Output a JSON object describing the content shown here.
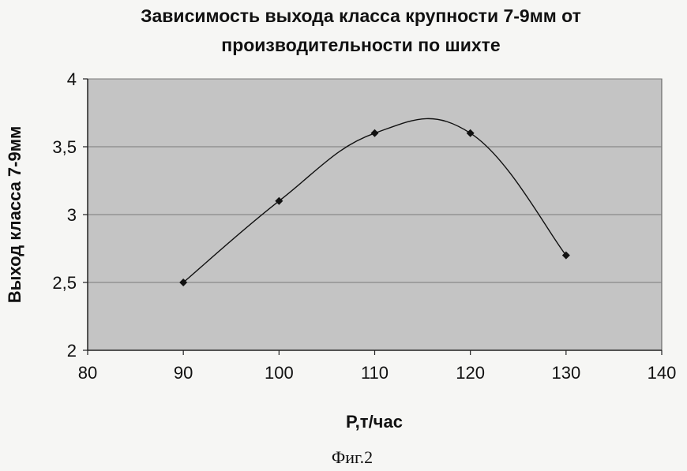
{
  "chart_data": {
    "type": "line",
    "title_lines": [
      "Зависимость выхода класса крупности 7-9мм от",
      "производительности по шихте"
    ],
    "xlabel": "Р,т/час",
    "ylabel": "Выход класса 7-9мм",
    "xlim": [
      80,
      140
    ],
    "ylim": [
      2,
      4
    ],
    "x_ticks": [
      80,
      90,
      100,
      110,
      120,
      130,
      140
    ],
    "x_tick_labels": [
      "80",
      "90",
      "100",
      "110",
      "120",
      "130",
      "140"
    ],
    "y_ticks": [
      2,
      2.5,
      3,
      3.5,
      4
    ],
    "y_tick_labels": [
      "2",
      "2,5",
      "3",
      "3,5",
      "4"
    ],
    "grid": "horizontal",
    "smoothed": true,
    "series": [
      {
        "x": [
          90,
          100,
          110,
          120,
          130
        ],
        "y": [
          2.5,
          3.1,
          3.6,
          3.6,
          2.7
        ]
      }
    ],
    "colors": {
      "plot_background": "#c4c4c4",
      "line": "#111111",
      "marker": "#111111"
    }
  },
  "caption": "Фиг.2"
}
